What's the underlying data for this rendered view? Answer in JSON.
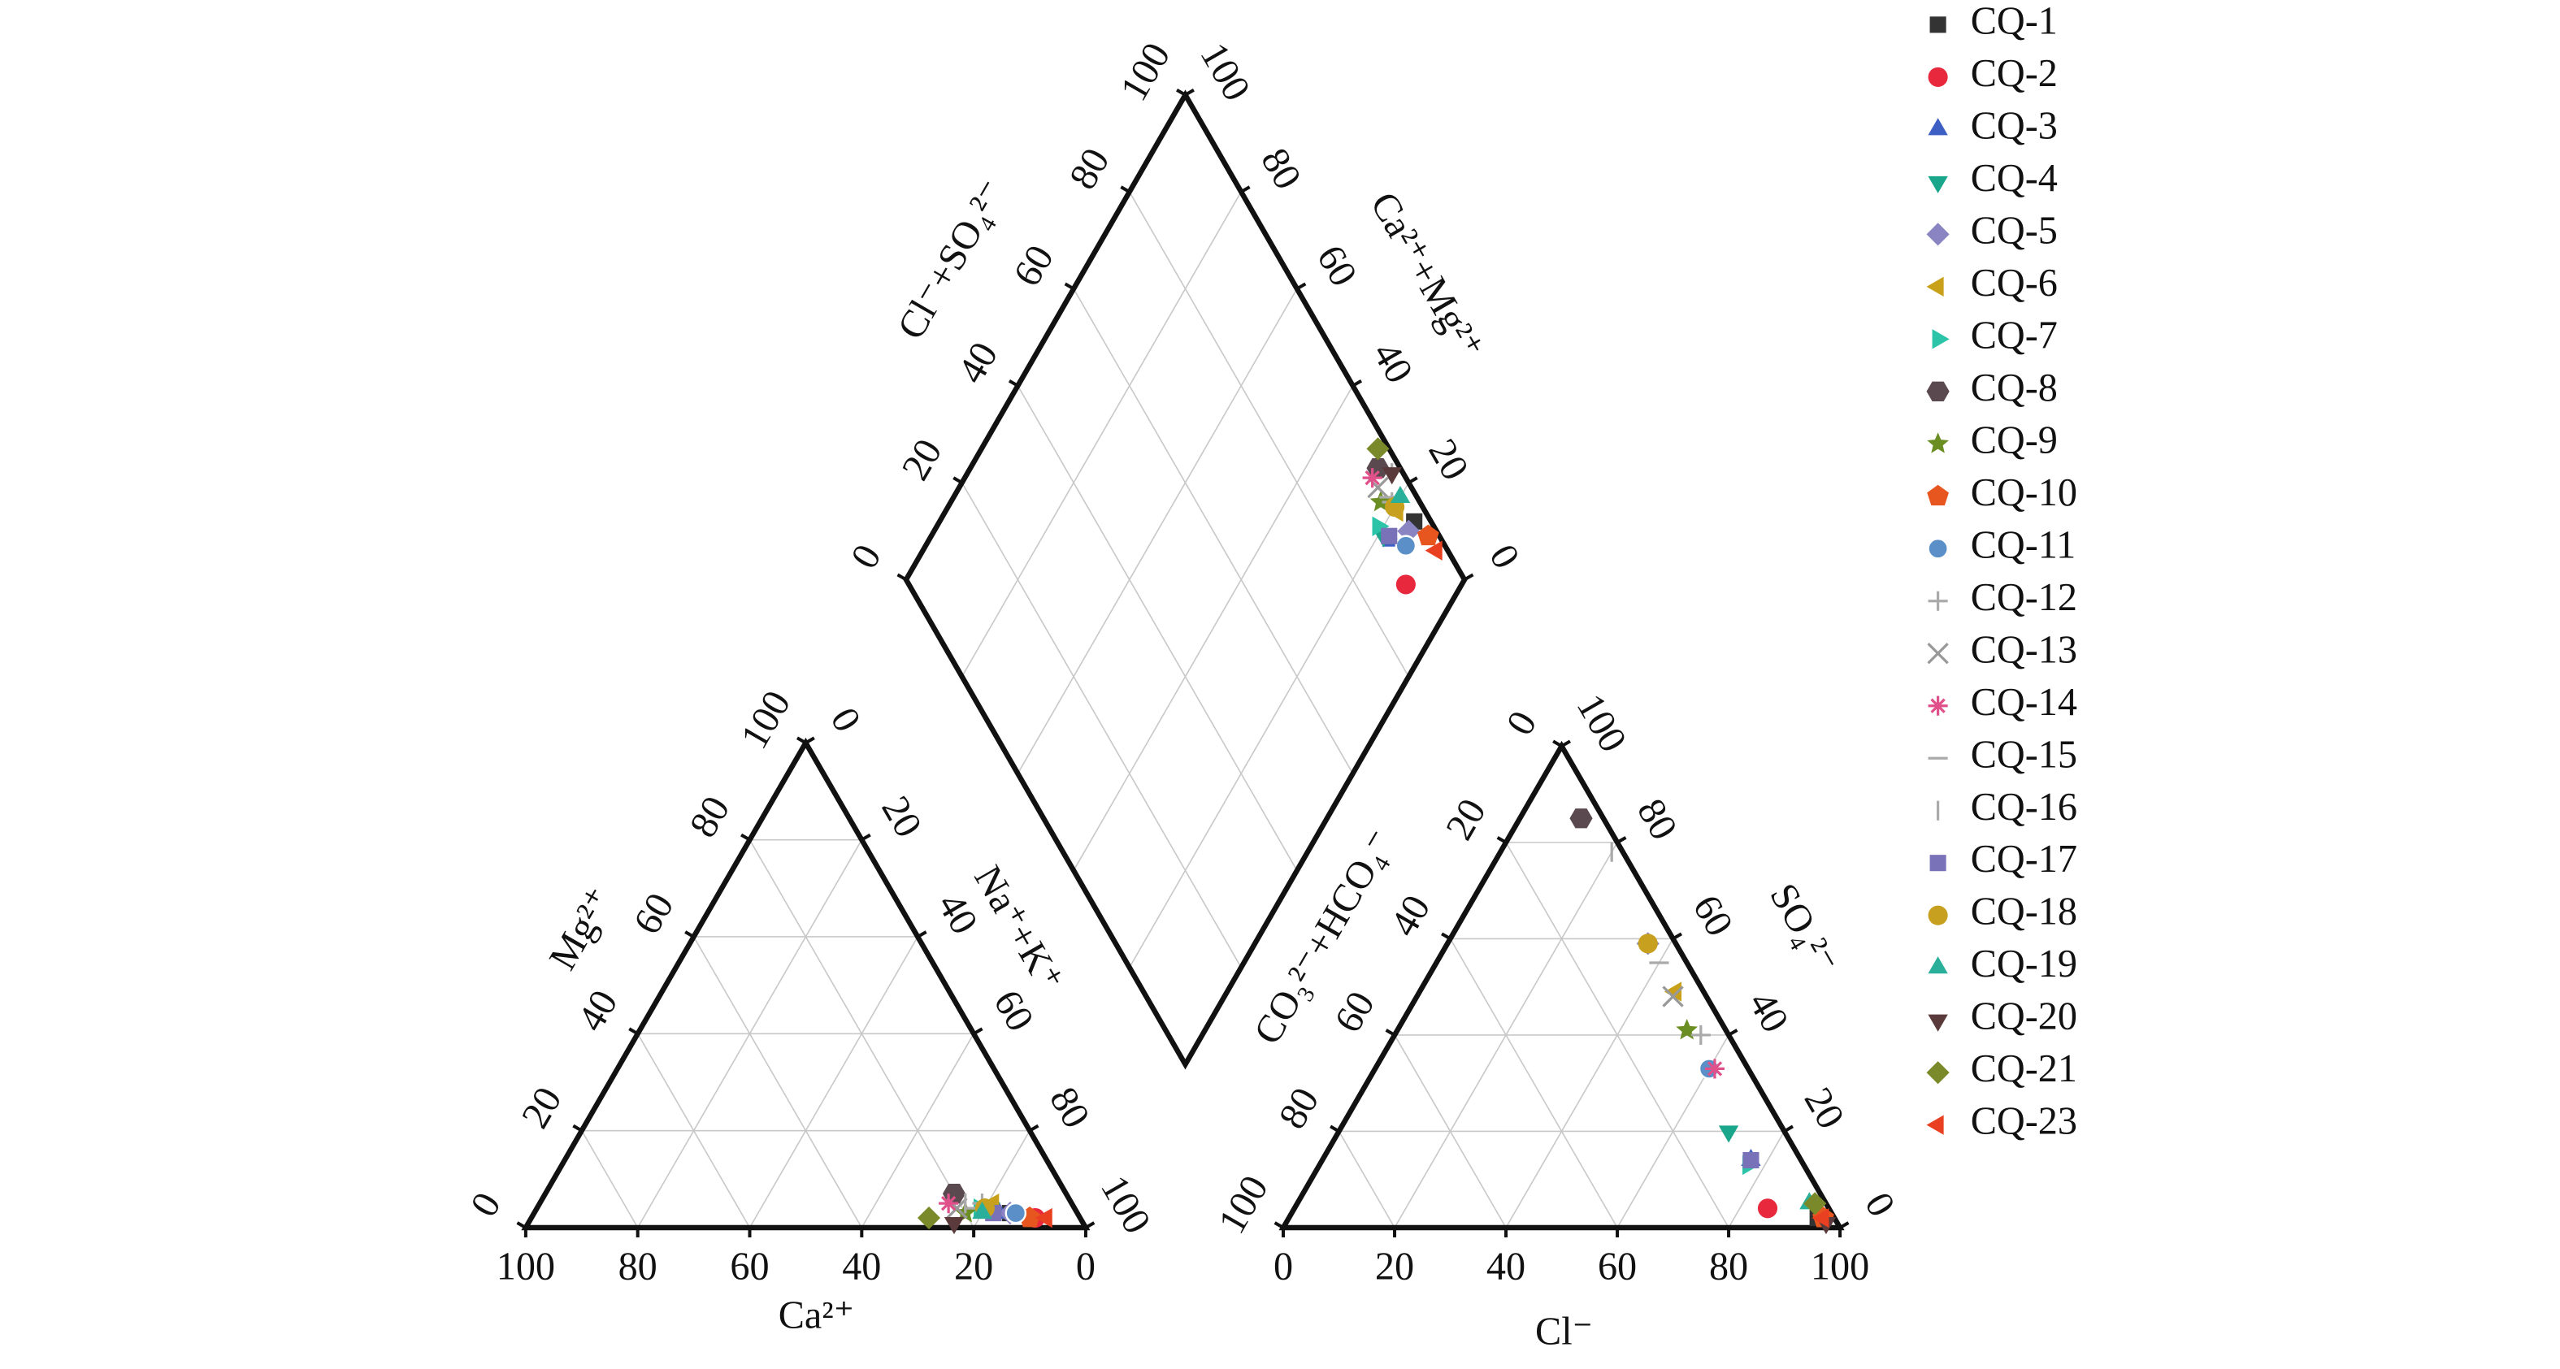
{
  "chart_data": {
    "type": "piper",
    "axes": {
      "ca": {
        "label": "Ca²⁺",
        "ticks": [
          0,
          20,
          40,
          60,
          80,
          100
        ]
      },
      "mg": {
        "label": "Mg²⁺",
        "ticks": [
          0,
          20,
          40,
          60,
          80,
          100
        ]
      },
      "na": {
        "label": "Na⁺+K⁺",
        "ticks": [
          0,
          20,
          40,
          60,
          80,
          100
        ]
      },
      "cl": {
        "label": "Cl⁻",
        "ticks": [
          0,
          20,
          40,
          60,
          80,
          100
        ]
      },
      "so4": {
        "label": "SO₄²⁻",
        "ticks": [
          0,
          20,
          40,
          60,
          80,
          100
        ]
      },
      "hco3": {
        "label": "CO₃²⁻+HCO₄⁻",
        "ticks": [
          0,
          20,
          40,
          60,
          80,
          100
        ]
      },
      "clso4": {
        "label": "Cl⁻+SO₄²⁻",
        "ticks": [
          0,
          20,
          40,
          60,
          80,
          100
        ]
      },
      "camg": {
        "label": "Ca²⁺+Mg²⁺",
        "ticks": [
          0,
          20,
          40,
          60,
          80,
          100
        ]
      }
    },
    "series": [
      {
        "name": "CQ-1",
        "color": "#333333",
        "marker": "square",
        "ca": 12,
        "mg": 3,
        "cl": 95,
        "so4": 2
      },
      {
        "name": "CQ-2",
        "color": "#e8283c",
        "marker": "circle",
        "ca": 8,
        "mg": 2,
        "cl": 85,
        "so4": 4
      },
      {
        "name": "CQ-3",
        "color": "#3d5fc4",
        "marker": "triangle-up",
        "ca": 14,
        "mg": 3,
        "cl": 77,
        "so4": 14
      },
      {
        "name": "CQ-4",
        "color": "#1aa68a",
        "marker": "triangle-down",
        "ca": 15,
        "mg": 4,
        "cl": 70,
        "so4": 20
      },
      {
        "name": "CQ-5",
        "color": "#8a84c2",
        "marker": "diamond",
        "ca": 12,
        "mg": 3,
        "cl": 36,
        "so4": 59
      },
      {
        "name": "CQ-6",
        "color": "#c9a01a",
        "marker": "triangle-left",
        "ca": 14,
        "mg": 5,
        "cl": 46,
        "so4": 49
      },
      {
        "name": "CQ-7",
        "color": "#2cc4a8",
        "marker": "triangle-right",
        "ca": 17,
        "mg": 4,
        "cl": 77,
        "so4": 13
      },
      {
        "name": "CQ-8",
        "color": "#5a4a4f",
        "marker": "hexagon",
        "ca": 20,
        "mg": 7,
        "cl": 11,
        "so4": 85
      },
      {
        "name": "CQ-9",
        "color": "#6b8e23",
        "marker": "star",
        "ca": 20,
        "mg": 3,
        "cl": 52,
        "so4": 41
      },
      {
        "name": "CQ-10",
        "color": "#e8561f",
        "marker": "pentagon",
        "ca": 9,
        "mg": 2,
        "cl": 96,
        "so4": 2
      },
      {
        "name": "CQ-11",
        "color": "#5a8fc8",
        "marker": "sphere",
        "ca": 11,
        "mg": 3,
        "cl": 60,
        "so4": 33
      },
      {
        "name": "CQ-12",
        "color": "#aaaaaa",
        "marker": "plus",
        "ca": 16,
        "mg": 5,
        "cl": 55,
        "so4": 40
      },
      {
        "name": "CQ-13",
        "color": "#999999",
        "marker": "cross",
        "ca": 21,
        "mg": 4,
        "cl": 46,
        "so4": 48
      },
      {
        "name": "CQ-14",
        "color": "#e0508a",
        "marker": "asterisk",
        "ca": 22,
        "mg": 5,
        "cl": 61,
        "so4": 33
      },
      {
        "name": "CQ-15",
        "color": "#aaaaaa",
        "marker": "hline",
        "ca": 18,
        "mg": 4,
        "cl": 40,
        "so4": 55
      },
      {
        "name": "CQ-16",
        "color": "#aaaaaa",
        "marker": "vline",
        "ca": 19,
        "mg": 5,
        "cl": 20,
        "so4": 78
      },
      {
        "name": "CQ-17",
        "color": "#7a72b8",
        "marker": "square",
        "ca": 15,
        "mg": 3,
        "cl": 77,
        "so4": 14
      },
      {
        "name": "CQ-18",
        "color": "#c8a020",
        "marker": "circle",
        "ca": 16,
        "mg": 4,
        "cl": 36,
        "so4": 59
      },
      {
        "name": "CQ-19",
        "color": "#2ab09a",
        "marker": "triangle-up",
        "ca": 17,
        "mg": 3,
        "cl": 92,
        "so4": 5
      },
      {
        "name": "CQ-20",
        "color": "#5a3a3a",
        "marker": "triangle-down",
        "ca": 23,
        "mg": 1,
        "cl": 97,
        "so4": 1
      },
      {
        "name": "CQ-21",
        "color": "#7a8a2a",
        "marker": "diamond",
        "ca": 27,
        "mg": 2,
        "cl": 93,
        "so4": 5
      },
      {
        "name": "CQ-23",
        "color": "#e84020",
        "marker": "triangle-left",
        "ca": 6,
        "mg": 2,
        "cl": 96,
        "so4": 2
      }
    ]
  }
}
